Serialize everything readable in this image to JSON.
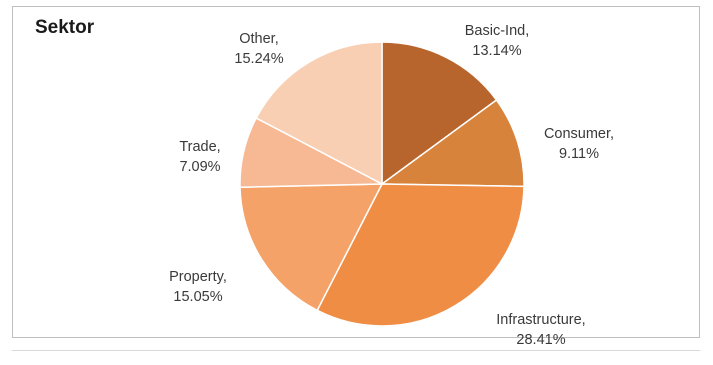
{
  "chart_data": {
    "type": "pie",
    "title": "Sektor",
    "slices": [
      {
        "name": "Basic-Ind",
        "value": 13.14,
        "label_line1": "Basic-Ind,",
        "label_line2": "13.14%",
        "color": "#b8652d"
      },
      {
        "name": "Consumer",
        "value": 9.11,
        "label_line1": "Consumer,",
        "label_line2": "9.11%",
        "color": "#d8833c"
      },
      {
        "name": "Infrastructure",
        "value": 28.41,
        "label_line1": "Infrastructure,",
        "label_line2": "28.41%",
        "color": "#ef8d45"
      },
      {
        "name": "Property",
        "value": 15.05,
        "label_line1": "Property,",
        "label_line2": "15.05%",
        "color": "#f4a267"
      },
      {
        "name": "Trade",
        "value": 7.09,
        "label_line1": "Trade,",
        "label_line2": "7.09%",
        "color": "#f6b994"
      },
      {
        "name": "Other",
        "value": 15.24,
        "label_line1": "Other,",
        "label_line2": "15.24%",
        "color": "#f9cfb4"
      }
    ],
    "start_angle": "12 o'clock",
    "direction": "clockwise",
    "legend": "none",
    "data_labels": "outside"
  }
}
